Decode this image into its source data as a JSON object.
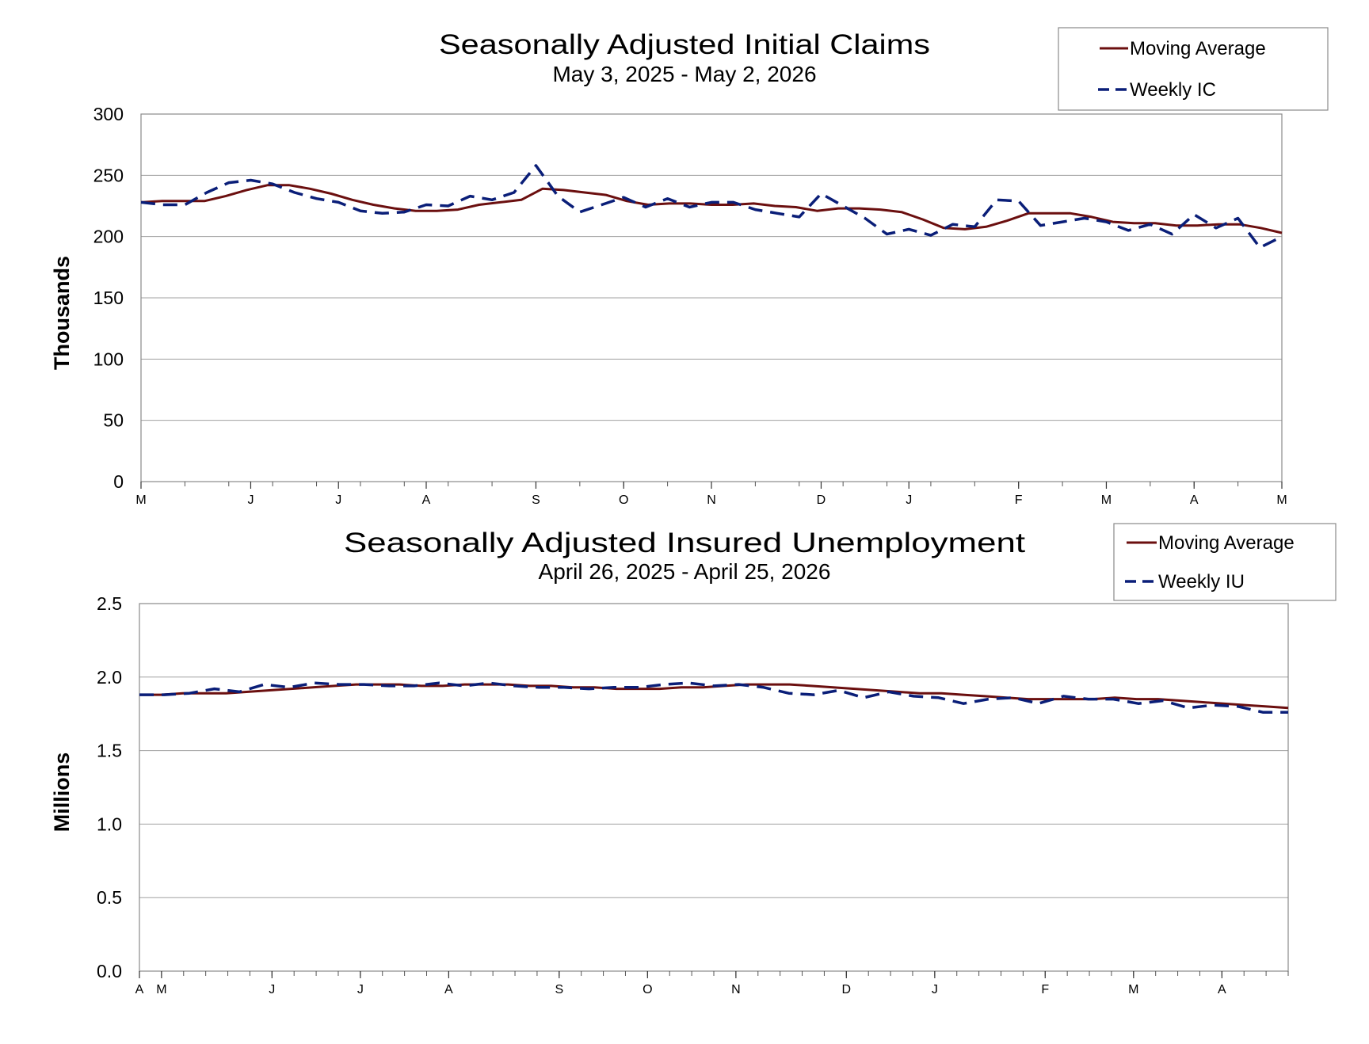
{
  "chart_data": [
    {
      "type": "line",
      "title": "Seasonally Adjusted Initial Claims",
      "subtitle": "May 3, 2025 - May 2, 2026",
      "ylabel": "Thousands",
      "xlabel": "",
      "ylim": [
        0,
        300
      ],
      "yticks": [
        "0",
        "50",
        "100",
        "150",
        "200",
        "250",
        "300"
      ],
      "x_tick_labels": [
        {
          "label": "M",
          "week": 0
        },
        {
          "label": "J",
          "week": 5
        },
        {
          "label": "J",
          "week": 9
        },
        {
          "label": "A",
          "week": 13
        },
        {
          "label": "S",
          "week": 18
        },
        {
          "label": "O",
          "week": 22
        },
        {
          "label": "N",
          "week": 26
        },
        {
          "label": "D",
          "week": 31
        },
        {
          "label": "J",
          "week": 35
        },
        {
          "label": "F",
          "week": 40
        },
        {
          "label": "M",
          "week": 44
        },
        {
          "label": "A",
          "week": 48
        },
        {
          "label": "M",
          "week": 52
        }
      ],
      "grid": true,
      "legend": "top-right",
      "colors": {
        "moving_average": "#6b0f0f",
        "weekly": "#0a1e78"
      },
      "series": [
        {
          "name": "Moving Average",
          "style": "solid",
          "values": [
            228,
            229,
            229,
            229,
            233,
            238,
            242,
            242,
            239,
            235,
            230,
            226,
            223,
            221,
            221,
            222,
            226,
            228,
            230,
            239,
            238,
            236,
            234,
            229,
            226,
            227,
            227,
            226,
            226,
            227,
            225,
            224,
            221,
            223,
            223,
            222,
            220,
            214,
            207,
            206,
            208,
            213,
            219,
            219,
            219,
            216,
            212,
            211,
            211,
            209,
            209,
            210,
            210,
            207,
            203
          ]
        },
        {
          "name": "Weekly IC",
          "style": "dashed",
          "values": [
            228,
            226,
            226,
            236,
            244,
            246,
            243,
            236,
            231,
            228,
            221,
            219,
            220,
            226,
            225,
            233,
            230,
            236,
            258,
            233,
            220,
            226,
            232,
            224,
            231,
            224,
            228,
            228,
            222,
            219,
            216,
            235,
            225,
            215,
            202,
            206,
            201,
            210,
            208,
            230,
            229,
            209,
            212,
            215,
            212,
            205,
            210,
            202,
            218,
            207,
            215,
            191,
            200
          ]
        }
      ]
    },
    {
      "type": "line",
      "title": "Seasonally Adjusted Insured Unemployment",
      "subtitle": "April 26, 2025 - April 25, 2026",
      "ylabel": "Millions",
      "xlabel": "",
      "ylim": [
        0.0,
        2.5
      ],
      "yticks": [
        "0.0",
        "0.5",
        "1.0",
        "1.5",
        "2.0",
        "2.5"
      ],
      "x_tick_labels": [
        {
          "label": "A",
          "week": 0
        },
        {
          "label": "M",
          "week": 1
        },
        {
          "label": "J",
          "week": 6
        },
        {
          "label": "J",
          "week": 10
        },
        {
          "label": "A",
          "week": 14
        },
        {
          "label": "S",
          "week": 19
        },
        {
          "label": "O",
          "week": 23
        },
        {
          "label": "N",
          "week": 27
        },
        {
          "label": "D",
          "week": 32
        },
        {
          "label": "J",
          "week": 36
        },
        {
          "label": "F",
          "week": 41
        },
        {
          "label": "M",
          "week": 45
        },
        {
          "label": "A",
          "week": 49
        }
      ],
      "grid": true,
      "legend": "top-right",
      "colors": {
        "moving_average": "#6b0f0f",
        "weekly": "#0a1e78"
      },
      "series": [
        {
          "name": "Moving Average",
          "style": "solid",
          "values": [
            1.88,
            1.88,
            1.89,
            1.89,
            1.89,
            1.9,
            1.91,
            1.92,
            1.93,
            1.94,
            1.95,
            1.95,
            1.95,
            1.94,
            1.94,
            1.95,
            1.95,
            1.95,
            1.94,
            1.94,
            1.93,
            1.93,
            1.92,
            1.92,
            1.92,
            1.93,
            1.93,
            1.94,
            1.95,
            1.95,
            1.95,
            1.94,
            1.93,
            1.92,
            1.91,
            1.9,
            1.89,
            1.89,
            1.88,
            1.87,
            1.86,
            1.85,
            1.85,
            1.85,
            1.85,
            1.86,
            1.85,
            1.85,
            1.84,
            1.83,
            1.82,
            1.81,
            1.8,
            1.79
          ]
        },
        {
          "name": "Weekly IU",
          "style": "dashed",
          "values": [
            1.88,
            1.88,
            1.89,
            1.92,
            1.9,
            1.95,
            1.93,
            1.96,
            1.95,
            1.95,
            1.94,
            1.94,
            1.96,
            1.94,
            1.96,
            1.94,
            1.93,
            1.93,
            1.92,
            1.93,
            1.93,
            1.95,
            1.96,
            1.94,
            1.95,
            1.93,
            1.89,
            1.88,
            1.91,
            1.86,
            1.9,
            1.87,
            1.86,
            1.82,
            1.85,
            1.86,
            1.82,
            1.87,
            1.85,
            1.85,
            1.82,
            1.84,
            1.79,
            1.81,
            1.8,
            1.76,
            1.76
          ]
        }
      ]
    }
  ]
}
